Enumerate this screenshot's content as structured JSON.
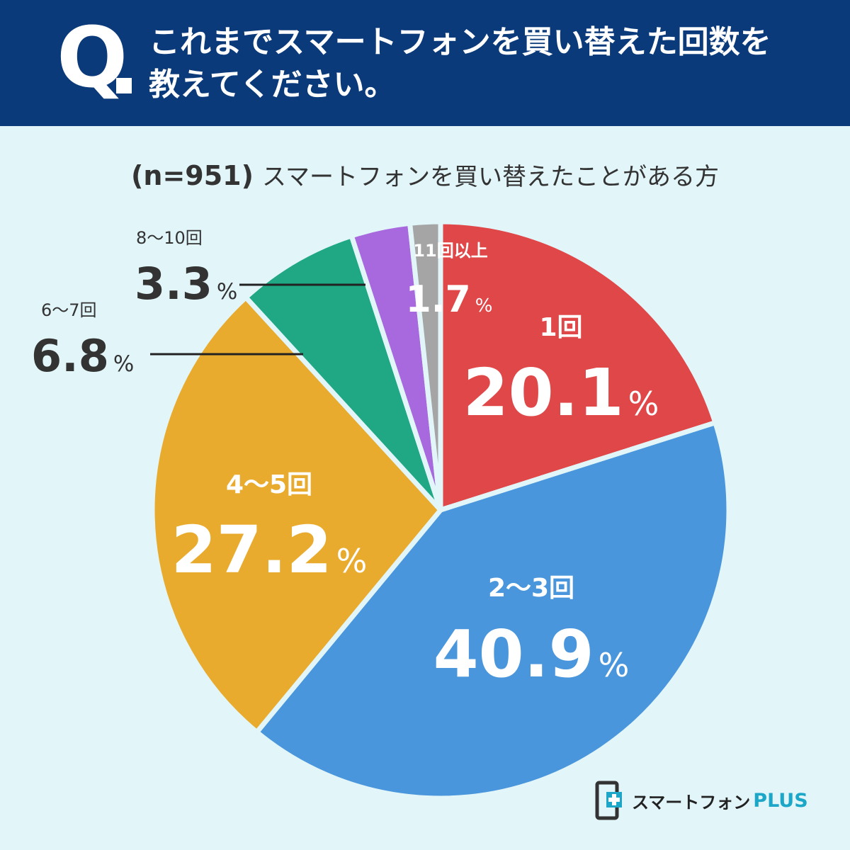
{
  "header": {
    "q_mark": "Q",
    "question_line1": "これまでスマートフォンを買い替えた回数を",
    "question_line2": "教えてください。"
  },
  "subtitle": {
    "n": "(n=951)",
    "text": "スマートフォンを買い替えたことがある方"
  },
  "chart_data": {
    "type": "pie",
    "categories": [
      "1回",
      "2～3回",
      "4～5回",
      "6～7回",
      "8～10回",
      "11回以上"
    ],
    "values": [
      20.1,
      40.9,
      27.2,
      6.8,
      3.3,
      1.7
    ],
    "unit": "%",
    "colors": [
      "#e04748",
      "#4a96dc",
      "#e9ab2e",
      "#1fa883",
      "#a868de",
      "#a5a5a5"
    ],
    "start": "12 o'clock",
    "direction": "clockwise"
  },
  "logo": {
    "text": "スマートフォン",
    "plus": "PLUS",
    "accent": "#1ca7c8"
  }
}
